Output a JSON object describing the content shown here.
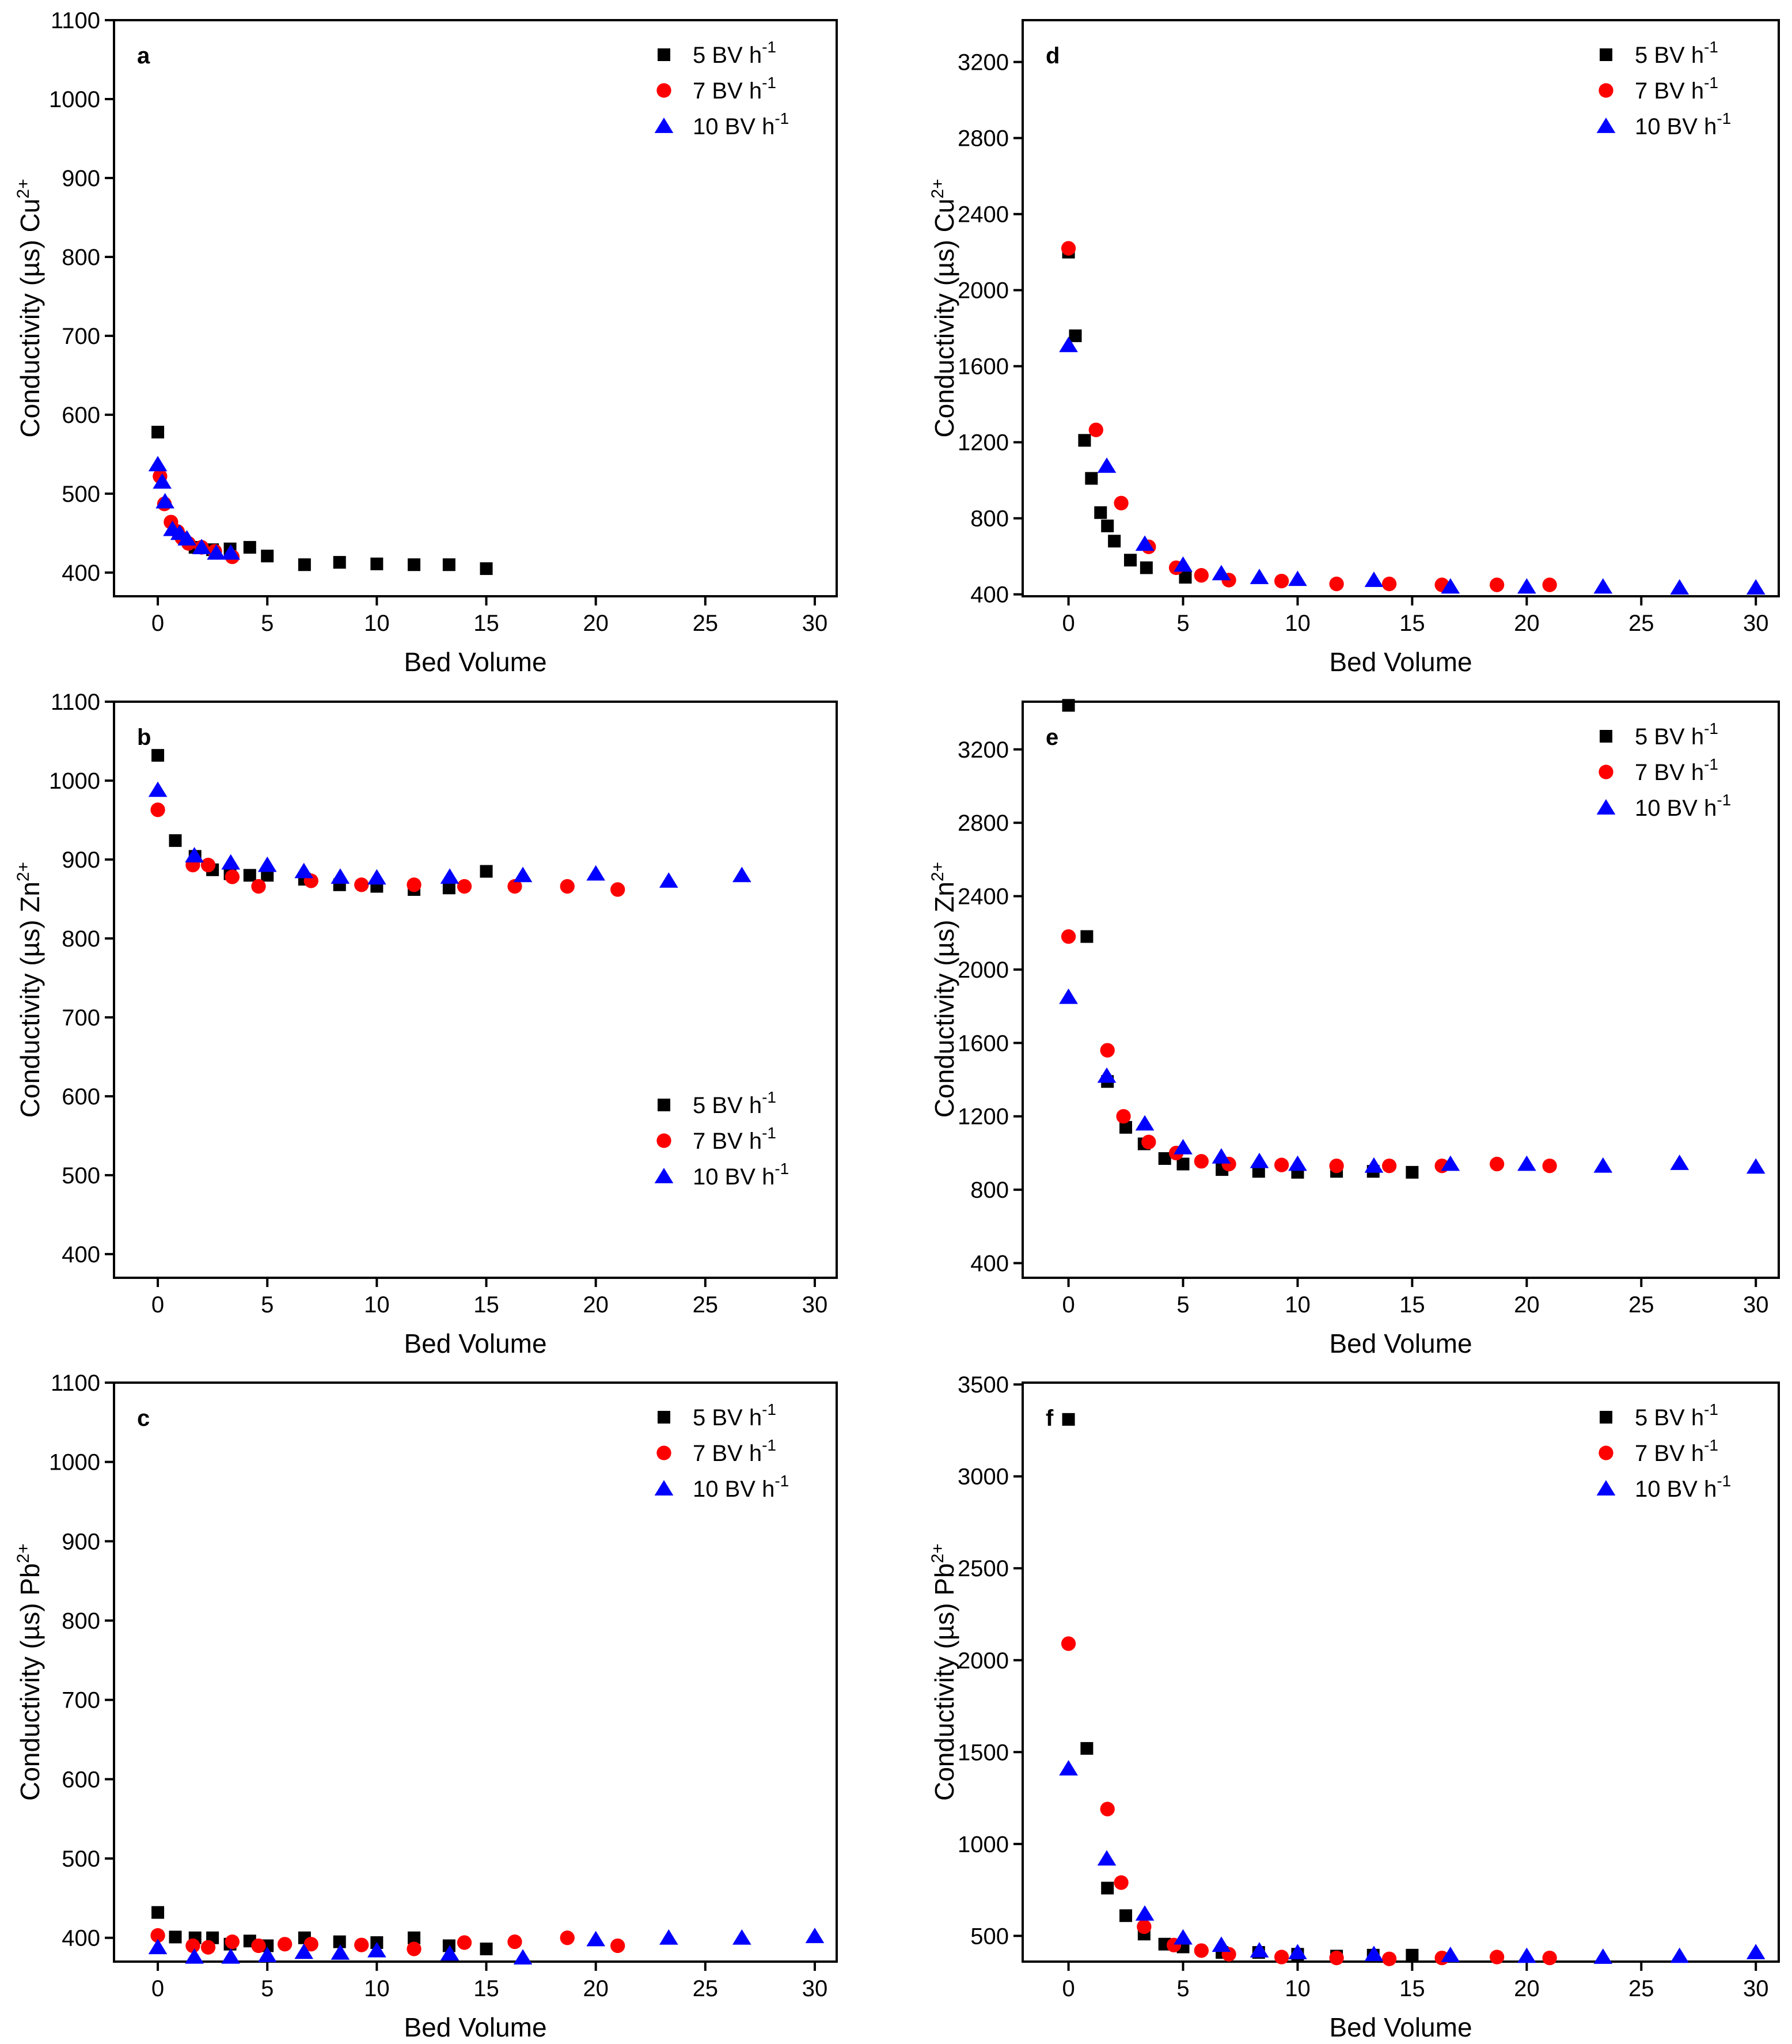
{
  "chart_data": [
    {
      "type": "scatter",
      "panel": "a",
      "xlabel": "Bed Volume",
      "ylabel": "Conductivity (µs) Cu",
      "ylabel_ion_sup": "2+",
      "xlim": [
        -2,
        31
      ],
      "ylim": [
        370,
        1100
      ],
      "xticks": [
        0,
        5,
        10,
        15,
        20,
        25,
        30
      ],
      "yticks": [
        400,
        500,
        600,
        700,
        800,
        900,
        1000,
        1100
      ],
      "legend_position": "top-right",
      "series": [
        {
          "name": "5 BV h",
          "sup": "-1",
          "marker": "square",
          "color": "#000000",
          "x": [
            0,
            1.7,
            2.5,
            3.3,
            4.2,
            5.0,
            6.7,
            8.3,
            10.0,
            11.7,
            13.3,
            15.0
          ],
          "y": [
            578,
            432,
            429,
            430,
            432,
            421,
            410,
            413,
            411,
            410,
            410,
            405
          ]
        },
        {
          "name": "7 BV h",
          "sup": "-1",
          "marker": "circle",
          "color": "#ff0000",
          "x": [
            0.1,
            0.3,
            0.6,
            0.9,
            1.1,
            1.4,
            2.0,
            2.6,
            3.4
          ],
          "y": [
            522,
            487,
            464,
            452,
            444,
            437,
            432,
            427,
            420
          ]
        },
        {
          "name": "10 BV h",
          "sup": "-1",
          "marker": "triangle",
          "color": "#0000ff",
          "x": [
            0,
            0.2,
            0.33,
            0.67,
            1.0,
            1.33,
            2.0,
            2.67,
            3.33
          ],
          "y": [
            537,
            515,
            490,
            455,
            450,
            443,
            432,
            425,
            425
          ]
        }
      ]
    },
    {
      "type": "scatter",
      "panel": "b",
      "xlabel": "Bed Volume",
      "ylabel": "Conductivity (µs) Zn",
      "ylabel_ion_sup": "2+",
      "xlim": [
        -2,
        31
      ],
      "ylim": [
        370,
        1100
      ],
      "xticks": [
        0,
        5,
        10,
        15,
        20,
        25,
        30
      ],
      "yticks": [
        400,
        500,
        600,
        700,
        800,
        900,
        1000,
        1100
      ],
      "legend_position": "bottom-right",
      "series": [
        {
          "name": "5 BV h",
          "sup": "-1",
          "marker": "square",
          "color": "#000000",
          "x": [
            0,
            0.8,
            1.7,
            2.5,
            3.3,
            4.2,
            5.0,
            6.7,
            8.3,
            10.0,
            11.7,
            13.3,
            15.0
          ],
          "y": [
            1032,
            924,
            904,
            887,
            882,
            880,
            880,
            875,
            868,
            866,
            862,
            864,
            885
          ]
        },
        {
          "name": "7 BV h",
          "sup": "-1",
          "marker": "circle",
          "color": "#ff0000",
          "x": [
            0,
            1.6,
            2.3,
            3.4,
            4.6,
            7.0,
            9.3,
            11.7,
            14.0,
            16.3,
            18.7,
            21.0
          ],
          "y": [
            963,
            893,
            893,
            878,
            866,
            873,
            868,
            868,
            866,
            866,
            866,
            862
          ]
        },
        {
          "name": "10 BV h",
          "sup": "-1",
          "marker": "triangle",
          "color": "#0000ff",
          "x": [
            0,
            1.67,
            3.33,
            5.0,
            6.67,
            8.33,
            10.0,
            13.33,
            16.67,
            20.0,
            23.33,
            26.67
          ],
          "y": [
            988,
            905,
            896,
            893,
            885,
            878,
            877,
            878,
            880,
            882,
            873,
            880
          ]
        }
      ]
    },
    {
      "type": "scatter",
      "panel": "c",
      "xlabel": "Bed Volume",
      "ylabel": "Conductivity (µs) Pb",
      "ylabel_ion_sup": "2+",
      "xlim": [
        -2,
        31
      ],
      "ylim": [
        370,
        1100
      ],
      "xticks": [
        0,
        5,
        10,
        15,
        20,
        25,
        30
      ],
      "yticks": [
        400,
        500,
        600,
        700,
        800,
        900,
        1000,
        1100
      ],
      "legend_position": "top-right",
      "series": [
        {
          "name": "5 BV h",
          "sup": "-1",
          "marker": "square",
          "color": "#000000",
          "x": [
            0,
            0.8,
            1.7,
            2.5,
            3.3,
            4.2,
            5.0,
            6.7,
            8.3,
            10.0,
            11.7,
            13.3,
            15.0
          ],
          "y": [
            432,
            401,
            400,
            400,
            392,
            396,
            390,
            400,
            395,
            394,
            400,
            390,
            386
          ]
        },
        {
          "name": "7 BV h",
          "sup": "-1",
          "marker": "circle",
          "color": "#ff0000",
          "x": [
            0,
            1.6,
            2.3,
            3.4,
            4.6,
            5.8,
            7.0,
            9.3,
            11.7,
            14.0,
            16.3,
            18.7,
            21.0
          ],
          "y": [
            403,
            390,
            388,
            395,
            390,
            392,
            392,
            391,
            386,
            394,
            395,
            400,
            390
          ]
        },
        {
          "name": "10 BV h",
          "sup": "-1",
          "marker": "triangle",
          "color": "#0000ff",
          "x": [
            0,
            1.67,
            3.33,
            5.0,
            6.67,
            8.33,
            10.0,
            13.33,
            16.67,
            20.0,
            23.33,
            26.67,
            30.0
          ],
          "y": [
            388,
            376,
            376,
            378,
            382,
            381,
            384,
            380,
            375,
            398,
            400,
            400,
            402
          ]
        }
      ]
    },
    {
      "type": "scatter",
      "panel": "d",
      "xlabel": "Bed Volume",
      "ylabel": "Conductivity (µs) Cu",
      "ylabel_ion_sup": "2+",
      "xlim": [
        -2,
        31
      ],
      "ylim": [
        390,
        3420
      ],
      "xticks": [
        0,
        5,
        10,
        15,
        20,
        25,
        30
      ],
      "yticks": [
        400,
        800,
        1200,
        1600,
        2000,
        2400,
        2800,
        3200
      ],
      "legend_position": "top-right",
      "series": [
        {
          "name": "5 BV h",
          "sup": "-1",
          "marker": "square",
          "color": "#000000",
          "x": [
            0,
            0.3,
            0.7,
            1.0,
            1.4,
            1.7,
            2.0,
            2.7,
            3.4,
            5.1
          ],
          "y": [
            2200,
            1760,
            1210,
            1010,
            830,
            760,
            680,
            580,
            540,
            490
          ]
        },
        {
          "name": "7 BV h",
          "sup": "-1",
          "marker": "circle",
          "color": "#ff0000",
          "x": [
            0,
            1.2,
            2.3,
            3.5,
            4.7,
            5.8,
            7.0,
            9.3,
            11.7,
            14.0,
            16.3,
            18.7,
            21.0
          ],
          "y": [
            2220,
            1265,
            880,
            650,
            540,
            500,
            475,
            470,
            455,
            455,
            450,
            450,
            450
          ]
        },
        {
          "name": "10 BV h",
          "sup": "-1",
          "marker": "triangle",
          "color": "#0000ff",
          "x": [
            0,
            1.67,
            3.33,
            5.0,
            6.67,
            8.33,
            10.0,
            13.33,
            16.67,
            20.0,
            23.33,
            26.67,
            30.0
          ],
          "y": [
            1710,
            1075,
            665,
            555,
            510,
            490,
            480,
            475,
            440,
            440,
            440,
            435,
            435
          ]
        }
      ]
    },
    {
      "type": "scatter",
      "panel": "e",
      "xlabel": "Bed Volume",
      "ylabel": "Conductivity (µs) Zn",
      "ylabel_ion_sup": "2+",
      "xlim": [
        -2,
        31
      ],
      "ylim": [
        320,
        3460
      ],
      "xticks": [
        0,
        5,
        10,
        15,
        20,
        25,
        30
      ],
      "yticks": [
        400,
        800,
        1200,
        1600,
        2000,
        2400,
        2800,
        3200
      ],
      "legend_position": "top-right",
      "series": [
        {
          "name": "5 BV h",
          "sup": "-1",
          "marker": "square",
          "color": "#000000",
          "x": [
            0,
            0.8,
            1.7,
            2.5,
            3.3,
            4.2,
            5.0,
            6.7,
            8.3,
            10.0,
            11.7,
            13.3,
            15.0
          ],
          "y": [
            3440,
            2180,
            1390,
            1140,
            1050,
            970,
            940,
            910,
            900,
            895,
            900,
            900,
            895
          ]
        },
        {
          "name": "7 BV h",
          "sup": "-1",
          "marker": "circle",
          "color": "#ff0000",
          "x": [
            0,
            1.7,
            2.4,
            3.5,
            4.7,
            5.8,
            7.0,
            9.3,
            11.7,
            14.0,
            16.3,
            18.7,
            21.0
          ],
          "y": [
            2180,
            1560,
            1200,
            1060,
            1000,
            955,
            940,
            935,
            930,
            930,
            930,
            940,
            930
          ]
        },
        {
          "name": "10 BV h",
          "sup": "-1",
          "marker": "triangle",
          "color": "#0000ff",
          "x": [
            0,
            1.67,
            3.33,
            5.0,
            6.67,
            8.33,
            10.0,
            13.33,
            16.67,
            20.0,
            23.33,
            26.67,
            30.0
          ],
          "y": [
            1850,
            1420,
            1160,
            1030,
            980,
            955,
            940,
            930,
            940,
            940,
            930,
            945,
            925
          ]
        }
      ]
    },
    {
      "type": "scatter",
      "panel": "f",
      "xlabel": "Bed Volume",
      "ylabel": "Conductivity (µs) Pb",
      "ylabel_ion_sup": "2+",
      "xlim": [
        -2,
        31
      ],
      "ylim": [
        360,
        3510
      ],
      "xticks": [
        0,
        5,
        10,
        15,
        20,
        25,
        30
      ],
      "yticks": [
        500,
        1000,
        1500,
        2000,
        2500,
        3000,
        3500
      ],
      "legend_position": "top-right",
      "series": [
        {
          "name": "5 BV h",
          "sup": "-1",
          "marker": "square",
          "color": "#000000",
          "x": [
            0,
            0.8,
            1.7,
            2.5,
            3.3,
            4.2,
            5.0,
            6.7,
            8.3,
            10.0,
            11.7,
            13.3,
            15.0
          ],
          "y": [
            3310,
            1520,
            760,
            610,
            510,
            455,
            440,
            410,
            410,
            400,
            390,
            395,
            395
          ]
        },
        {
          "name": "7 BV h",
          "sup": "-1",
          "marker": "circle",
          "color": "#ff0000",
          "x": [
            0,
            1.7,
            2.3,
            3.3,
            4.6,
            5.8,
            7.0,
            9.3,
            11.7,
            14.0,
            16.3,
            18.7,
            21.0
          ],
          "y": [
            2090,
            1190,
            790,
            550,
            450,
            420,
            400,
            385,
            380,
            375,
            380,
            385,
            380
          ]
        },
        {
          "name": "10 BV h",
          "sup": "-1",
          "marker": "triangle",
          "color": "#0000ff",
          "x": [
            0,
            1.67,
            3.33,
            5.0,
            6.67,
            8.33,
            10.0,
            13.33,
            16.67,
            20.0,
            23.33,
            26.67,
            30.0
          ],
          "y": [
            1410,
            920,
            620,
            490,
            450,
            420,
            410,
            400,
            395,
            390,
            385,
            390,
            410
          ]
        }
      ]
    }
  ]
}
